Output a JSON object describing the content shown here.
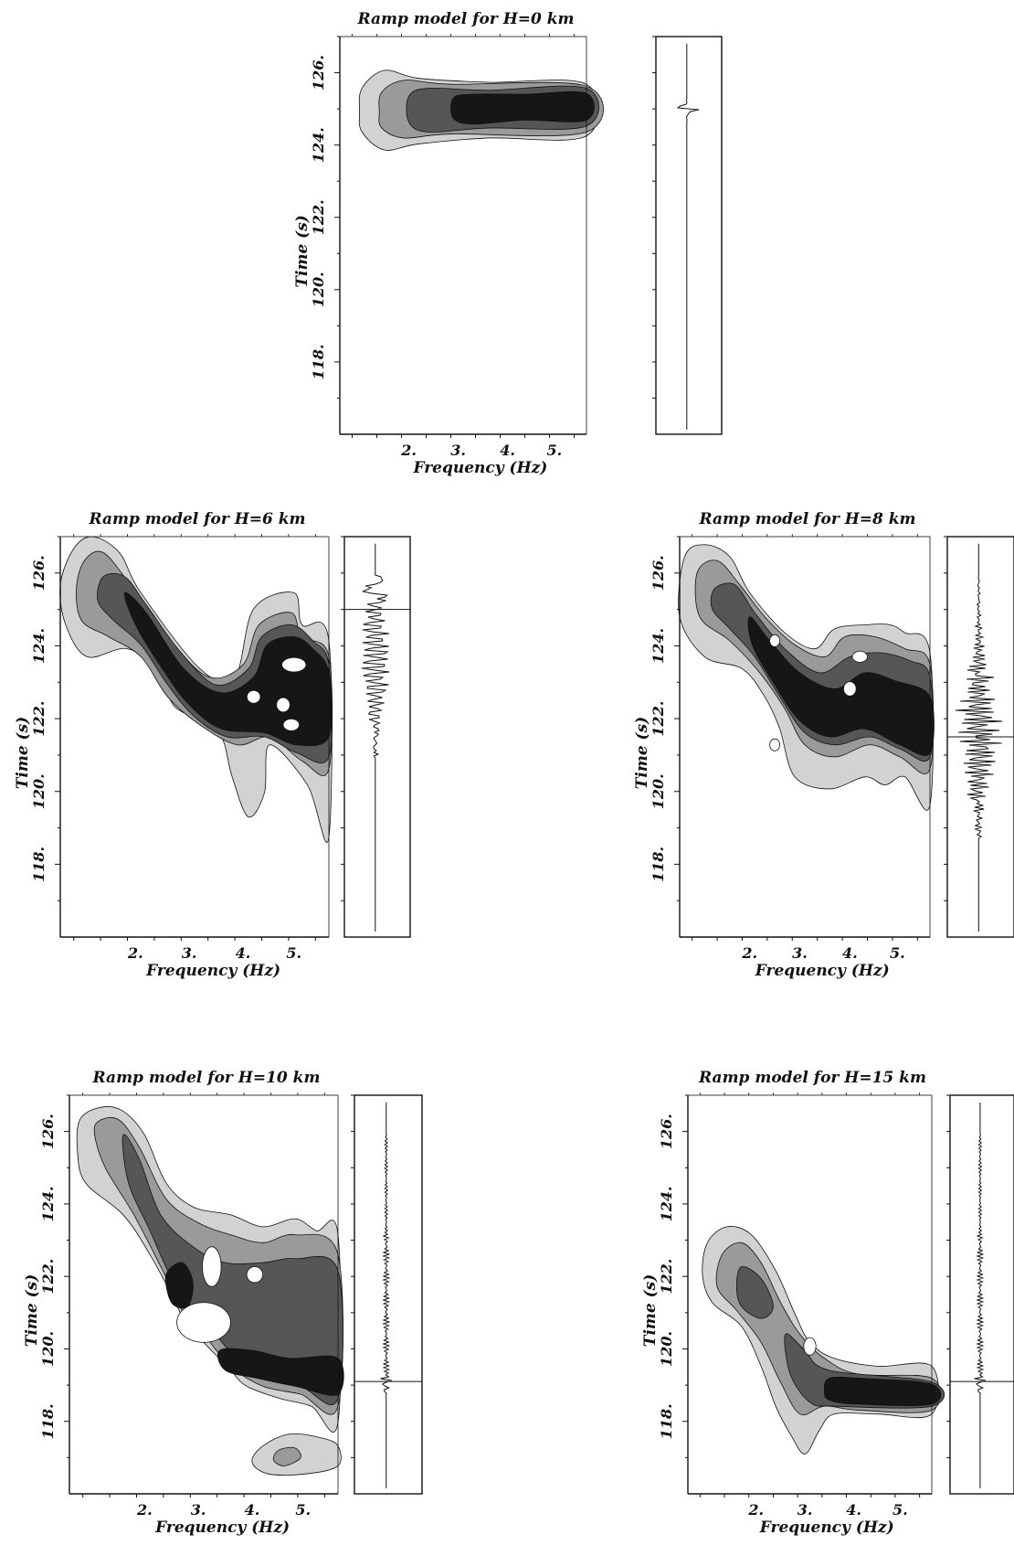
{
  "chart_data": [
    {
      "type": "heatmap",
      "subtype": "time-frequency contour with seismogram trace",
      "title": "Ramp model for H=0 km",
      "xlabel": "Frequency (Hz)",
      "ylabel": "Time (s)",
      "x_ticks": [
        "2.",
        "3.",
        "4.",
        "5."
      ],
      "y_ticks": [
        "118.",
        "120.",
        "122.",
        "124.",
        "126."
      ],
      "ylim": [
        116.0,
        127.0
      ],
      "contour_levels": 4,
      "colors": [
        "#d2d2d2",
        "#9a9a9a",
        "#565656",
        "#161616"
      ],
      "energy_peak_time_s": 125.0,
      "trace_arrival_time_s": 125.0
    },
    {
      "type": "heatmap",
      "subtype": "time-frequency contour with seismogram trace",
      "title": "Ramp model for H=6 km",
      "xlabel": "Frequency (Hz)",
      "ylabel": "Time (s)",
      "x_ticks": [
        "2.",
        "3.",
        "4.",
        "5."
      ],
      "y_ticks": [
        "118.",
        "120.",
        "122.",
        "124.",
        "126."
      ],
      "ylim": [
        116.0,
        127.0
      ],
      "contour_levels": 4,
      "trace_arrival_time_s": 125.0
    },
    {
      "type": "heatmap",
      "subtype": "time-frequency contour with seismogram trace",
      "title": "Ramp model for H=8 km",
      "xlabel": "Frequency (Hz)",
      "ylabel": "Time (s)",
      "x_ticks": [
        "2.",
        "3.",
        "4.",
        "5."
      ],
      "y_ticks": [
        "118.",
        "120.",
        "122.",
        "124.",
        "126."
      ],
      "ylim": [
        116.0,
        127.0
      ],
      "contour_levels": 4,
      "trace_arrival_time_s": 121.5
    },
    {
      "type": "heatmap",
      "subtype": "time-frequency contour with seismogram trace",
      "title": "Ramp model for H=10 km",
      "xlabel": "Frequency (Hz)",
      "ylabel": "Time (s)",
      "x_ticks": [
        "2.",
        "3.",
        "4.",
        "5."
      ],
      "y_ticks": [
        "118.",
        "120.",
        "122.",
        "124.",
        "126."
      ],
      "ylim": [
        116.0,
        127.0
      ],
      "contour_levels": 4,
      "trace_arrival_time_s": 119.1
    },
    {
      "type": "heatmap",
      "subtype": "time-frequency contour with seismogram trace",
      "title": "Ramp model for H=15 km",
      "xlabel": "Frequency (Hz)",
      "ylabel": "Time (s)",
      "x_ticks": [
        "2.",
        "3.",
        "4.",
        "5."
      ],
      "y_ticks": [
        "118.",
        "120.",
        "122.",
        "124.",
        "126."
      ],
      "ylim": [
        116.0,
        127.0
      ],
      "contour_levels": 4,
      "trace_arrival_time_s": 119.1
    }
  ]
}
